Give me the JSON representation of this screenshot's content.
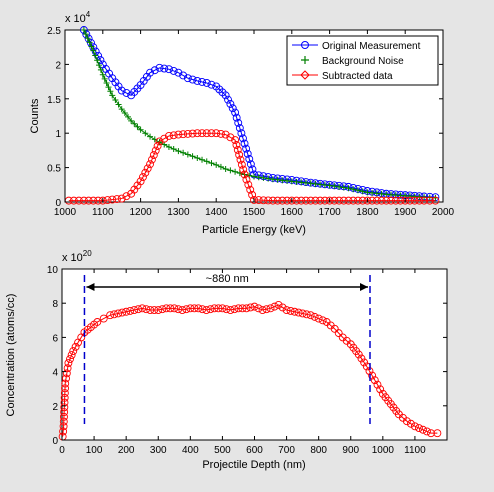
{
  "chart_data": [
    {
      "type": "scatter",
      "exponent_label": "x 10",
      "exponent_power": "4",
      "xlabel": "Particle Energy (keV)",
      "ylabel": "Counts",
      "xlim": [
        1000,
        2000
      ],
      "ylim": [
        0,
        2.5
      ],
      "xticks": [
        1000,
        1100,
        1200,
        1300,
        1400,
        1500,
        1600,
        1700,
        1800,
        1900,
        2000
      ],
      "yticks": [
        0,
        0.5,
        1,
        1.5,
        2,
        2.5
      ],
      "ytick_labels": [
        "0",
        "0.5",
        "1",
        "1.5",
        "2",
        "2.5"
      ],
      "legend_position": "top-right",
      "series": [
        {
          "name": "Original Measurement",
          "marker": "circle",
          "color": "#0000ff",
          "x": [
            1050,
            1075,
            1100,
            1125,
            1150,
            1175,
            1200,
            1225,
            1250,
            1275,
            1300,
            1325,
            1350,
            1375,
            1400,
            1425,
            1450,
            1475,
            1500,
            1550,
            1600,
            1650,
            1700,
            1750,
            1800,
            1850,
            1900,
            1950,
            1980
          ],
          "y": [
            2.5,
            2.25,
            2.0,
            1.8,
            1.62,
            1.55,
            1.7,
            1.88,
            1.95,
            1.93,
            1.88,
            1.8,
            1.76,
            1.73,
            1.68,
            1.55,
            1.3,
            0.85,
            0.4,
            0.35,
            0.32,
            0.28,
            0.25,
            0.22,
            0.16,
            0.12,
            0.1,
            0.08,
            0.07
          ]
        },
        {
          "name": "Background Noise",
          "marker": "plus",
          "color": "#008000",
          "x": [
            1050,
            1075,
            1100,
            1125,
            1150,
            1175,
            1200,
            1225,
            1250,
            1275,
            1300,
            1325,
            1350,
            1375,
            1400,
            1425,
            1450,
            1475,
            1500,
            1550,
            1600,
            1650,
            1700,
            1750,
            1800,
            1850,
            1900,
            1950,
            1980
          ],
          "y": [
            2.5,
            2.2,
            1.85,
            1.55,
            1.35,
            1.18,
            1.05,
            0.95,
            0.87,
            0.8,
            0.74,
            0.69,
            0.64,
            0.59,
            0.54,
            0.48,
            0.44,
            0.4,
            0.37,
            0.33,
            0.3,
            0.27,
            0.24,
            0.2,
            0.14,
            0.11,
            0.09,
            0.07,
            0.06
          ]
        },
        {
          "name": "Subtracted data",
          "marker": "circle",
          "color": "#ff0000",
          "x": [
            1010,
            1050,
            1100,
            1150,
            1175,
            1200,
            1225,
            1250,
            1275,
            1300,
            1325,
            1350,
            1375,
            1400,
            1425,
            1450,
            1475,
            1500,
            1550,
            1600,
            1650,
            1700,
            1750,
            1800,
            1850,
            1900,
            1950,
            1980
          ],
          "y": [
            0.02,
            0.02,
            0.02,
            0.05,
            0.12,
            0.3,
            0.55,
            0.88,
            0.96,
            0.98,
            0.99,
            1.0,
            1.0,
            1.0,
            0.98,
            0.9,
            0.4,
            0.03,
            0.02,
            0.02,
            0.02,
            0.02,
            0.02,
            0.02,
            0.02,
            0.02,
            0.02,
            0.02
          ]
        }
      ]
    },
    {
      "type": "line",
      "exponent_label": "x 10",
      "exponent_power": "20",
      "xlabel": "Projectile Depth (nm)",
      "ylabel": "Concentration (atoms/cc)",
      "xlim": [
        0,
        1200
      ],
      "ylim": [
        0,
        10
      ],
      "xticks": [
        0,
        100,
        200,
        300,
        400,
        500,
        600,
        700,
        800,
        900,
        1000,
        1100
      ],
      "yticks": [
        0,
        2,
        4,
        6,
        8,
        10
      ],
      "ytick_labels": [
        "0",
        "2",
        "4",
        "6",
        "8",
        "10"
      ],
      "annotation": "~880 nm",
      "markers": [
        {
          "x": 70
        },
        {
          "x": 960
        }
      ],
      "series": [
        {
          "marker": "circle",
          "color": "#ff0000",
          "x": [
            2,
            5,
            10,
            20,
            35,
            50,
            70,
            90,
            110,
            130,
            150,
            175,
            200,
            225,
            250,
            275,
            300,
            325,
            350,
            375,
            400,
            425,
            450,
            475,
            500,
            525,
            550,
            575,
            600,
            625,
            650,
            675,
            700,
            725,
            750,
            775,
            800,
            825,
            850,
            875,
            900,
            925,
            950,
            975,
            1000,
            1025,
            1050,
            1075,
            1100,
            1125,
            1150,
            1170
          ],
          "y": [
            0.2,
            0.8,
            3.3,
            4.5,
            5.2,
            5.7,
            6.3,
            6.6,
            6.9,
            7.1,
            7.3,
            7.4,
            7.5,
            7.6,
            7.7,
            7.6,
            7.6,
            7.7,
            7.7,
            7.6,
            7.7,
            7.7,
            7.6,
            7.7,
            7.7,
            7.6,
            7.7,
            7.7,
            7.8,
            7.6,
            7.7,
            7.9,
            7.6,
            7.5,
            7.4,
            7.3,
            7.1,
            6.9,
            6.5,
            6.0,
            5.6,
            5.0,
            4.3,
            3.5,
            2.7,
            2.1,
            1.5,
            1.1,
            0.8,
            0.6,
            0.4,
            0.4
          ]
        }
      ]
    }
  ]
}
